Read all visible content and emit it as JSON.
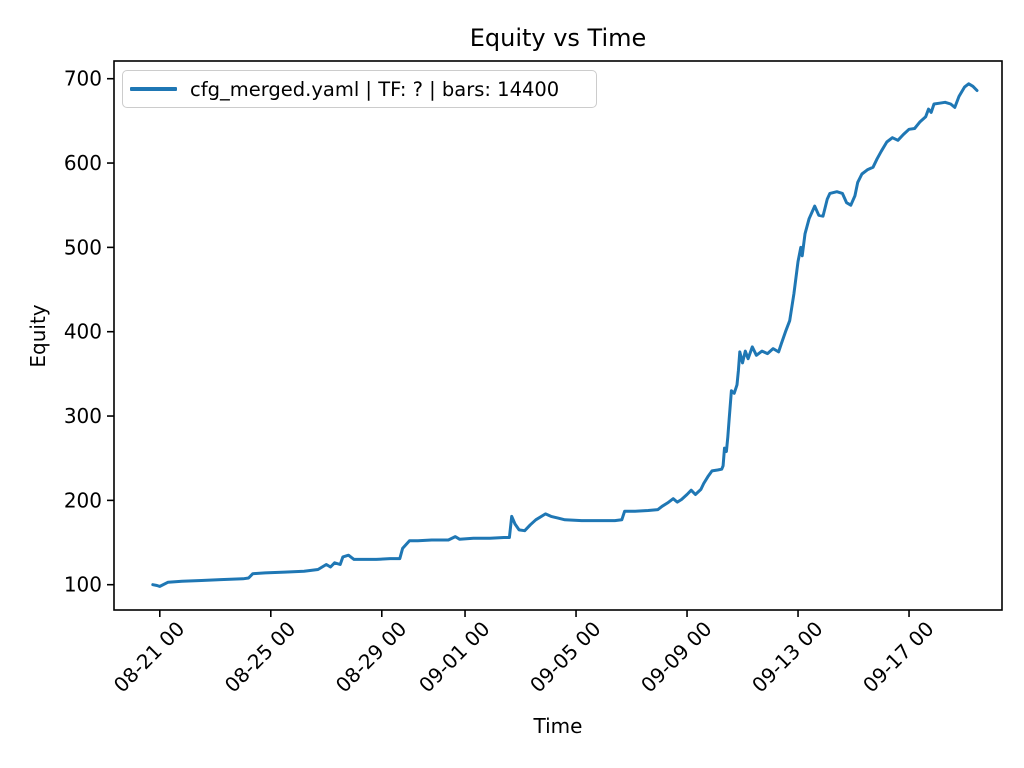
{
  "figure": {
    "title": "Equity vs Time",
    "xlabel": "Time",
    "ylabel": "Equity"
  },
  "legend": {
    "label": "cfg_merged.yaml | TF: ? | bars: 14400",
    "line_color": "#1f77b4"
  },
  "chart_data": {
    "type": "line",
    "title": "Equity vs Time",
    "xlabel": "Time",
    "ylabel": "Equity",
    "grid": false,
    "legend_position": "upper left",
    "x_axis_note": "x values are days relative to 08-21 00:00, estimated from tick spacing",
    "x_tick_days": [
      0,
      4,
      8,
      11,
      15,
      19,
      23,
      27
    ],
    "x_tick_labels": [
      "08-21 00",
      "08-25 00",
      "08-29 00",
      "09-01 00",
      "09-05 00",
      "09-09 00",
      "09-13 00",
      "09-17 00"
    ],
    "y_ticks": [
      100,
      200,
      300,
      400,
      500,
      600,
      700
    ],
    "xlim_days": [
      -1.65,
      30.35
    ],
    "ylim": [
      70,
      721
    ],
    "series": [
      {
        "name": "cfg_merged.yaml | TF: ? | bars: 14400",
        "color": "#1f77b4",
        "x_days": [
          -0.25,
          -0.1,
          0.0,
          0.3,
          0.8,
          1.5,
          2.2,
          3.0,
          3.2,
          3.35,
          3.8,
          4.5,
          5.2,
          5.7,
          6.0,
          6.15,
          6.3,
          6.5,
          6.6,
          6.8,
          7.0,
          7.3,
          7.8,
          8.3,
          8.65,
          8.75,
          9.0,
          9.3,
          9.8,
          10.4,
          10.65,
          10.8,
          11.3,
          11.9,
          12.4,
          12.6,
          12.68,
          12.8,
          12.95,
          13.15,
          13.35,
          13.55,
          13.9,
          14.1,
          14.35,
          14.6,
          15.2,
          15.8,
          16.4,
          16.65,
          16.75,
          17.1,
          17.6,
          17.95,
          18.1,
          18.3,
          18.5,
          18.65,
          18.8,
          19.0,
          19.15,
          19.3,
          19.5,
          19.6,
          19.75,
          19.9,
          20.1,
          20.25,
          20.3,
          20.35,
          20.42,
          20.47,
          20.52,
          20.6,
          20.7,
          20.8,
          20.85,
          20.9,
          21.0,
          21.1,
          21.2,
          21.35,
          21.5,
          21.7,
          21.9,
          22.1,
          22.3,
          22.4,
          22.55,
          22.7,
          22.85,
          23.0,
          23.1,
          23.15,
          23.25,
          23.4,
          23.6,
          23.75,
          23.9,
          24.05,
          24.15,
          24.4,
          24.6,
          24.75,
          24.9,
          25.05,
          25.15,
          25.3,
          25.5,
          25.7,
          25.85,
          26.0,
          26.2,
          26.4,
          26.6,
          26.8,
          27.0,
          27.2,
          27.4,
          27.6,
          27.7,
          27.8,
          27.9,
          28.1,
          28.3,
          28.5,
          28.65,
          28.8,
          29.0,
          29.15,
          29.3,
          29.45
        ],
        "equity": [
          100,
          99,
          98,
          103,
          104,
          105,
          106,
          107,
          108,
          113,
          114,
          115,
          116,
          118,
          124,
          121,
          126,
          124,
          133,
          135,
          130,
          130,
          130,
          131,
          131,
          143,
          152,
          152,
          153,
          153,
          157,
          154,
          155,
          155,
          156,
          156,
          181,
          172,
          165,
          164,
          171,
          177,
          184,
          181,
          179,
          177,
          176,
          176,
          176,
          177,
          187,
          187,
          188,
          189,
          193,
          197,
          202,
          198,
          201,
          207,
          212,
          207,
          213,
          220,
          228,
          235,
          236,
          237,
          241,
          262,
          258,
          275,
          297,
          330,
          327,
          337,
          354,
          376,
          363,
          377,
          368,
          382,
          372,
          377,
          374,
          380,
          376,
          386,
          400,
          413,
          445,
          483,
          500,
          490,
          516,
          534,
          549,
          538,
          537,
          557,
          564,
          566,
          564,
          553,
          550,
          561,
          577,
          587,
          592,
          595,
          605,
          614,
          625,
          630,
          627,
          634,
          640,
          641,
          649,
          655,
          664,
          660,
          670,
          671,
          672,
          670,
          666,
          679,
          690,
          694,
          691,
          686
        ]
      }
    ]
  }
}
